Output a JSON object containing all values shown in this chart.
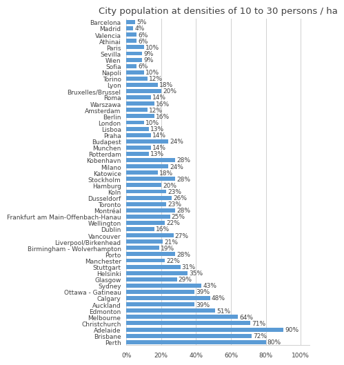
{
  "title": "City population at densities of 10 to 30 persons / ha",
  "cities": [
    "Barcelona",
    "Madrid",
    "Valencia",
    "Athinai",
    "Paris",
    "Sevilla",
    "Wien",
    "Sofia",
    "Napoli",
    "Torino",
    "Lyon",
    "Bruxelles/Brussel",
    "Roma",
    "Warszawa",
    "Amsterdam",
    "Berlin",
    "London",
    "Lisboa",
    "Praha",
    "Budapest",
    "Munchen",
    "Rotterdam",
    "Kobenhavn",
    "Milano",
    "Katowice",
    "Stockholm",
    "Hamburg",
    "Koln",
    "Dusseldorf",
    "Toronto",
    "Montréal",
    "Frankfurt am Main-Offenbach-Hanau",
    "Wellington",
    "Dublin",
    "Vancouver",
    "Liverpool/Birkenhead",
    "Birmingham - Wolverhampton",
    "Porto",
    "Manchester",
    "Stuttgart",
    "Helsinki",
    "Glasgow",
    "Sydney",
    "Ottawa - Gatineau",
    "Calgary",
    "Auckland",
    "Edmonton",
    "Melbourne",
    "Christchurch",
    "Adelaide",
    "Brisbane",
    "Perth"
  ],
  "values": [
    5,
    4,
    6,
    6,
    10,
    9,
    9,
    6,
    10,
    12,
    18,
    20,
    14,
    16,
    12,
    16,
    10,
    13,
    14,
    24,
    14,
    13,
    28,
    24,
    18,
    28,
    20,
    23,
    26,
    23,
    28,
    25,
    22,
    16,
    27,
    21,
    19,
    28,
    22,
    31,
    35,
    29,
    43,
    39,
    48,
    39,
    51,
    64,
    71,
    90,
    72,
    80
  ],
  "bar_color": "#5B9BD5",
  "label_color": "#404040",
  "title_fontsize": 9.5,
  "tick_fontsize": 6.5,
  "value_fontsize": 6.5,
  "xlim": [
    0,
    105
  ],
  "xticks": [
    0,
    20,
    40,
    60,
    80,
    100
  ],
  "xticklabels": [
    "0%",
    "20%",
    "40%",
    "60%",
    "80%",
    "100%"
  ],
  "bar_height": 0.65
}
